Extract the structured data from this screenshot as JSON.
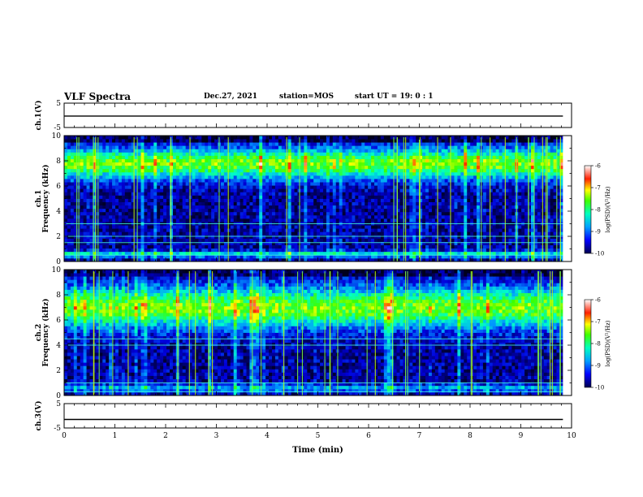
{
  "header": {
    "title": "VLF Spectra",
    "date": "Dec.27, 2021",
    "station": "station=MOS",
    "start": "start UT =  19: 0  : 1"
  },
  "chart_data": [
    {
      "type": "line",
      "panel": "ch1-waveform",
      "ylabel": "ch.1(V)",
      "ylim": [
        -5,
        5
      ],
      "yticks": [
        "5",
        "-5"
      ],
      "x": [
        0,
        9.83
      ],
      "values": [
        -0.3,
        -0.3
      ]
    },
    {
      "type": "heatmap",
      "panel": "ch1-spectrogram",
      "ylabel": "ch.1\nFrequency (kHz)",
      "ylim": [
        0,
        10
      ],
      "yticks": [
        "0",
        "2",
        "4",
        "6",
        "8",
        "10"
      ],
      "xlim": [
        0,
        9.83
      ],
      "zlabel": "log(PSD)(V²/Hz)",
      "zlim": [
        -10,
        -6
      ],
      "zticks": [
        "-6",
        "-7",
        "-8",
        "-9",
        "-10"
      ],
      "steady_lines_khz": [
        2.0,
        1.5,
        3.0,
        0.5
      ]
    },
    {
      "type": "heatmap",
      "panel": "ch2-spectrogram",
      "ylabel": "ch.2\nFrequency (kHz)",
      "ylim": [
        0,
        10
      ],
      "yticks": [
        "0",
        "2",
        "4",
        "6",
        "8",
        "10"
      ],
      "xlim": [
        0,
        9.83
      ],
      "zlabel": "log(PSD)(V²/Hz)",
      "zlim": [
        -10,
        -6
      ],
      "zticks": [
        "-6",
        "-7",
        "-8",
        "-9",
        "-10"
      ],
      "steady_lines_khz": [
        4.5,
        4.0,
        1.0,
        0.3
      ]
    },
    {
      "type": "line",
      "panel": "ch3-waveform",
      "ylabel": "ch.3(V)",
      "ylim": [
        -5,
        5
      ],
      "yticks": [
        "5",
        "-5"
      ],
      "x": [
        0,
        9.83
      ],
      "values": [
        -1.5,
        -1.5
      ],
      "xlabel": "Time (min)",
      "xlim": [
        0,
        10
      ],
      "xticks": [
        "0",
        "1",
        "2",
        "3",
        "4",
        "5",
        "6",
        "7",
        "8",
        "9",
        "10"
      ]
    }
  ]
}
